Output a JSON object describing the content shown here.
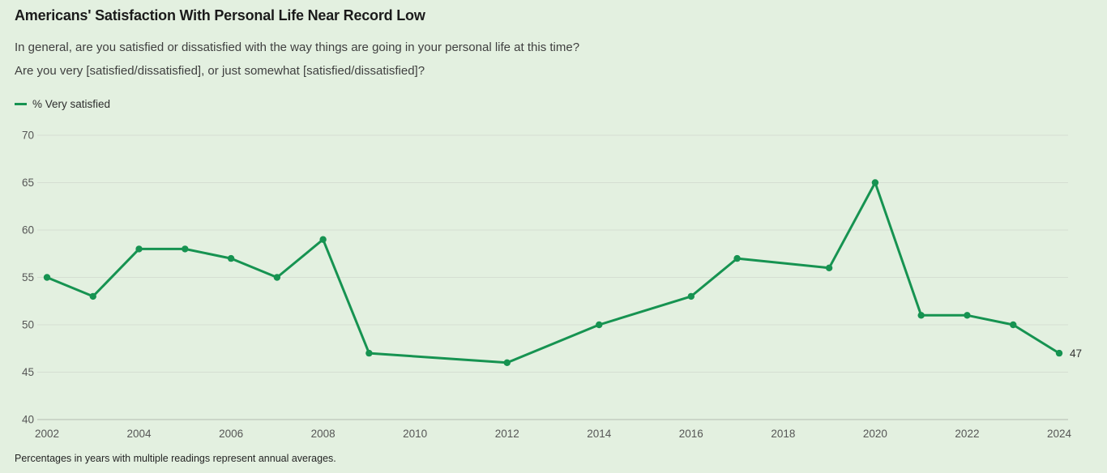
{
  "page": {
    "background_color": "#e3f0e0"
  },
  "header": {
    "title": "Americans' Satisfaction With Personal Life Near Record Low",
    "question_line1": "In general, are you satisfied or dissatisfied with the way things are going in your personal life at this time?",
    "question_line2": "Are you very [satisfied/dissatisfied], or just somewhat [satisfied/dissatisfied]?"
  },
  "legend": {
    "series_label": "% Very satisfied",
    "swatch_color": "#169351"
  },
  "chart_data": {
    "type": "line",
    "title": "Americans' Satisfaction With Personal Life Near Record Low",
    "xlabel": "",
    "ylabel": "",
    "xlim": [
      2002,
      2024
    ],
    "ylim": [
      40,
      70
    ],
    "yticks": [
      40,
      45,
      50,
      55,
      60,
      65,
      70
    ],
    "xticks": [
      2002,
      2004,
      2006,
      2008,
      2010,
      2012,
      2014,
      2016,
      2018,
      2020,
      2022,
      2024
    ],
    "grid": true,
    "legend_position": "top-left",
    "series": [
      {
        "name": "% Very satisfied",
        "color": "#169351",
        "points": [
          {
            "x": 2002,
            "y": 55
          },
          {
            "x": 2003,
            "y": 53
          },
          {
            "x": 2004,
            "y": 58
          },
          {
            "x": 2005,
            "y": 58
          },
          {
            "x": 2006,
            "y": 57
          },
          {
            "x": 2007,
            "y": 55
          },
          {
            "x": 2008,
            "y": 59
          },
          {
            "x": 2009,
            "y": 47
          },
          {
            "x": 2012,
            "y": 46
          },
          {
            "x": 2014,
            "y": 50
          },
          {
            "x": 2016,
            "y": 53
          },
          {
            "x": 2017,
            "y": 57
          },
          {
            "x": 2019,
            "y": 56
          },
          {
            "x": 2020,
            "y": 65
          },
          {
            "x": 2021,
            "y": 51
          },
          {
            "x": 2022,
            "y": 51
          },
          {
            "x": 2023,
            "y": 50
          },
          {
            "x": 2024,
            "y": 47
          }
        ],
        "end_label": "47"
      }
    ],
    "colors": {
      "gridline": "#d5ded2",
      "axis_line": "#b3bcb0",
      "tick_label": "#565656",
      "end_label": "#333333"
    }
  },
  "footer": {
    "note": "Percentages in years with multiple readings represent annual averages."
  }
}
